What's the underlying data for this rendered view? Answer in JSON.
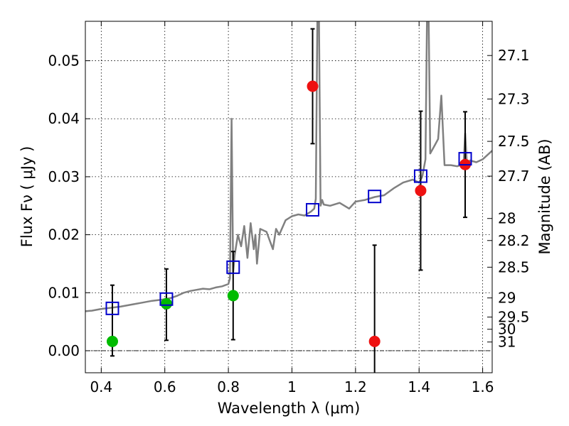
{
  "chart_data": {
    "type": "scatter",
    "title": "",
    "xlabel": "Wavelength  λ (μm)",
    "ylabel": "Flux  Fν  ( μJy )",
    "y2label": "Magnitude (AB)",
    "xlim": [
      0.35,
      1.63
    ],
    "ylim": [
      -0.0038,
      0.0568
    ],
    "grid": true,
    "zero_line": true,
    "x_ticks": [
      0.4,
      0.6,
      0.8,
      1.0,
      1.2,
      1.4,
      1.6
    ],
    "x_tick_labels": [
      "0.4",
      "0.6",
      "0.8",
      "1",
      "1.2",
      "1.4",
      "1.6"
    ],
    "y_ticks": [
      0.0,
      0.01,
      0.02,
      0.03,
      0.04,
      0.05
    ],
    "y_tick_labels": [
      "0.00",
      "0.01",
      "0.02",
      "0.03",
      "0.04",
      "0.05"
    ],
    "y2_ticks": [
      {
        "label": "27.1",
        "flux": 0.0509
      },
      {
        "label": "27.3",
        "flux": 0.0434
      },
      {
        "label": "27.5",
        "flux": 0.0361
      },
      {
        "label": "27.7",
        "flux": 0.0301
      },
      {
        "label": "28",
        "flux": 0.0228
      },
      {
        "label": "28.2",
        "flux": 0.019
      },
      {
        "label": "28.5",
        "flux": 0.0144
      },
      {
        "label": "29",
        "flux": 0.0091
      },
      {
        "label": "29.5",
        "flux": 0.0058
      },
      {
        "label": "30",
        "flux": 0.0037
      },
      {
        "label": "31",
        "flux": 0.0015
      }
    ],
    "colors": {
      "model": "#808080",
      "green": "#00bb00",
      "red": "#ee1111",
      "square": "#0000cc",
      "error": "#000000"
    },
    "series": [
      {
        "name": "model spectrum",
        "type": "line",
        "x": [
          0.35,
          0.37,
          0.4,
          0.43,
          0.46,
          0.5,
          0.53,
          0.56,
          0.59,
          0.62,
          0.64,
          0.66,
          0.68,
          0.7,
          0.72,
          0.74,
          0.76,
          0.78,
          0.8,
          0.805,
          0.81,
          0.815,
          0.82,
          0.83,
          0.84,
          0.85,
          0.86,
          0.87,
          0.88,
          0.885,
          0.89,
          0.9,
          0.92,
          0.94,
          0.95,
          0.96,
          0.98,
          1.0,
          1.02,
          1.04,
          1.06,
          1.07,
          1.075,
          1.08,
          1.085,
          1.09,
          1.095,
          1.1,
          1.12,
          1.15,
          1.18,
          1.2,
          1.23,
          1.26,
          1.29,
          1.32,
          1.35,
          1.38,
          1.4,
          1.41,
          1.42,
          1.425,
          1.43,
          1.435,
          1.44,
          1.45,
          1.46,
          1.47,
          1.48,
          1.5,
          1.52,
          1.54,
          1.545,
          1.55,
          1.555,
          1.56,
          1.58,
          1.6,
          1.63
        ],
        "y": [
          0.0068,
          0.0069,
          0.0072,
          0.0074,
          0.0076,
          0.008,
          0.0083,
          0.0086,
          0.0088,
          0.0091,
          0.0095,
          0.01,
          0.0103,
          0.0105,
          0.0107,
          0.0106,
          0.0109,
          0.0111,
          0.0115,
          0.0125,
          0.04,
          0.0135,
          0.0165,
          0.02,
          0.018,
          0.0215,
          0.016,
          0.022,
          0.0175,
          0.02,
          0.015,
          0.021,
          0.0205,
          0.0175,
          0.021,
          0.02,
          0.0225,
          0.0232,
          0.0235,
          0.0233,
          0.024,
          0.0245,
          0.0262,
          0.057,
          0.057,
          0.025,
          0.026,
          0.0252,
          0.025,
          0.0255,
          0.0245,
          0.0257,
          0.026,
          0.0265,
          0.0268,
          0.028,
          0.029,
          0.0295,
          0.029,
          0.03,
          0.033,
          0.058,
          0.058,
          0.034,
          0.0345,
          0.0355,
          0.0365,
          0.044,
          0.032,
          0.032,
          0.0318,
          0.0322,
          0.0375,
          0.0325,
          0.032,
          0.0328,
          0.0325,
          0.033,
          0.0345
        ]
      },
      {
        "name": "green points",
        "type": "marker",
        "marker": "circle",
        "x": [
          0.435,
          0.605,
          0.815
        ],
        "y": [
          0.0016,
          0.0081,
          0.0095
        ],
        "yerr_low": [
          0.0025,
          0.0063,
          0.0076
        ],
        "yerr_high": [
          0.0097,
          0.006,
          0.0076
        ]
      },
      {
        "name": "red points",
        "type": "marker",
        "marker": "circle",
        "x": [
          1.065,
          1.26,
          1.405,
          1.545
        ],
        "y": [
          0.0456,
          0.0016,
          0.0276,
          0.0321
        ],
        "yerr_low": [
          0.0099,
          0.0055,
          0.0137,
          0.0091
        ],
        "yerr_high": [
          0.0099,
          0.0166,
          0.0137,
          0.0091
        ]
      },
      {
        "name": "model photometry",
        "type": "marker",
        "marker": "square",
        "x": [
          0.435,
          0.605,
          0.815,
          1.065,
          1.26,
          1.405,
          1.545
        ],
        "y": [
          0.0073,
          0.0089,
          0.0144,
          0.0243,
          0.0266,
          0.0301,
          0.0331
        ]
      }
    ]
  }
}
